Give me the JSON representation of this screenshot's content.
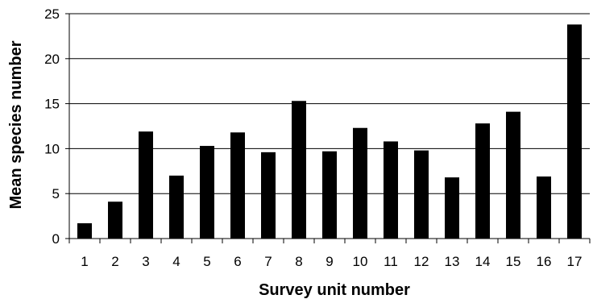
{
  "chart_data": {
    "type": "bar",
    "xlabel": "Survey unit number",
    "ylabel": "Mean species number",
    "categories": [
      "1",
      "2",
      "3",
      "4",
      "5",
      "6",
      "7",
      "8",
      "9",
      "10",
      "11",
      "12",
      "13",
      "14",
      "15",
      "16",
      "17"
    ],
    "values": [
      1.7,
      4.1,
      11.9,
      7.0,
      10.3,
      11.8,
      9.6,
      15.3,
      9.7,
      12.3,
      10.8,
      9.8,
      6.8,
      12.8,
      14.1,
      6.9,
      23.8
    ],
    "ylim": [
      0,
      25
    ],
    "yticks": [
      0,
      5,
      10,
      15,
      20,
      25
    ],
    "grid": true,
    "legend": "none",
    "colors": {
      "bar": "#000000",
      "gridline": "#000000",
      "background": "#ffffff"
    }
  }
}
